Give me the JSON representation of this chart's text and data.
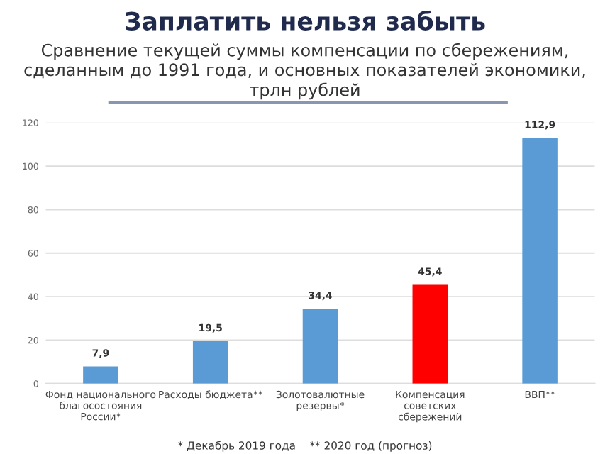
{
  "chart_data": {
    "type": "bar",
    "title": "Заплатить нельзя забыть",
    "subtitle": "Сравнение текущей суммы компенсации по сбережениям, сделанным до 1991 года, и основных показателей экономики, трлн рублей",
    "categories": [
      "Фонд национального\nблагосостояния\nРоссии*",
      "Расходы бюджета**",
      "Золотовалютные\nрезервы*",
      "Компенсация\nсоветских\nсбережений",
      "ВВП**"
    ],
    "values": [
      7.9,
      19.5,
      34.4,
      45.4,
      112.9
    ],
    "value_labels": [
      "7,9",
      "19,5",
      "34,4",
      "45,4",
      "112,9"
    ],
    "colors": [
      "#5b9bd5",
      "#5b9bd5",
      "#5b9bd5",
      "#ff0000",
      "#5b9bd5"
    ],
    "ylim": [
      0,
      120
    ],
    "yticks": [
      0,
      20,
      40,
      60,
      80,
      100,
      120
    ],
    "grid": "y",
    "annotations": [
      "* Декабрь 2019 года    ** 2020 год (прогноз)"
    ]
  }
}
